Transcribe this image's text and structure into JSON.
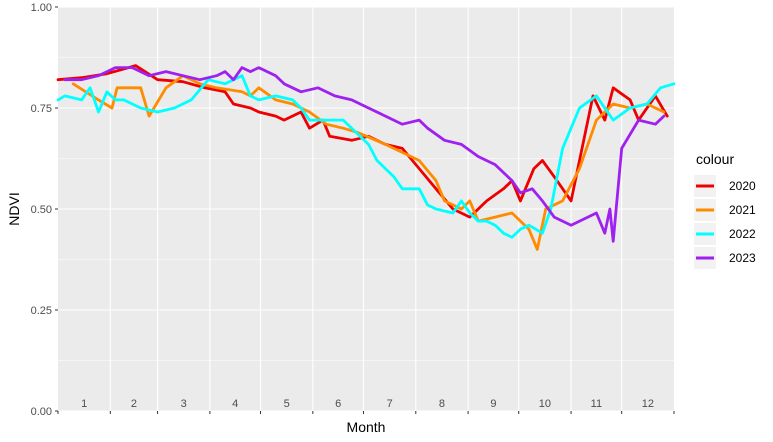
{
  "chart_data": {
    "type": "line",
    "xlabel": "Month",
    "ylabel": "NDVI",
    "ylim": [
      0,
      1
    ],
    "xlim": [
      1,
      366
    ],
    "y_ticks": [
      "0.00",
      "0.25",
      "0.50",
      "0.75",
      "1.00"
    ],
    "month_labels": [
      "1",
      "2",
      "3",
      "4",
      "5",
      "6",
      "7",
      "8",
      "9",
      "10",
      "11",
      "12"
    ],
    "grid": true,
    "legend_title": "colour",
    "legend_position": "right",
    "series": [
      {
        "name": "2020",
        "color": "#EE0000",
        "x": [
          1,
          15,
          30,
          47,
          60,
          75,
          88,
          100,
          105,
          115,
          120,
          130,
          135,
          145,
          150,
          158,
          162,
          175,
          185,
          195,
          205,
          215,
          225,
          235,
          245,
          255,
          265,
          270,
          275,
          283,
          288,
          295,
          305,
          310,
          318,
          325,
          330,
          340,
          345,
          355,
          362
        ],
        "y": [
          0.82,
          0.825,
          0.835,
          0.855,
          0.82,
          0.815,
          0.8,
          0.79,
          0.76,
          0.75,
          0.74,
          0.73,
          0.72,
          0.74,
          0.7,
          0.72,
          0.68,
          0.67,
          0.68,
          0.66,
          0.65,
          0.6,
          0.55,
          0.5,
          0.48,
          0.52,
          0.55,
          0.57,
          0.52,
          0.6,
          0.62,
          0.58,
          0.52,
          0.62,
          0.78,
          0.72,
          0.8,
          0.77,
          0.72,
          0.78,
          0.73
        ]
      },
      {
        "name": "2021",
        "color": "#FF8C00",
        "x": [
          10,
          25,
          33,
          36,
          50,
          55,
          65,
          75,
          85,
          95,
          110,
          115,
          120,
          130,
          140,
          150,
          160,
          170,
          178,
          184,
          195,
          205,
          215,
          225,
          230,
          240,
          245,
          250,
          260,
          270,
          280,
          285,
          290,
          300,
          310,
          320,
          330,
          340,
          350,
          360
        ],
        "y": [
          0.81,
          0.77,
          0.75,
          0.8,
          0.8,
          0.73,
          0.8,
          0.83,
          0.81,
          0.8,
          0.79,
          0.78,
          0.8,
          0.77,
          0.76,
          0.74,
          0.71,
          0.7,
          0.69,
          0.68,
          0.66,
          0.64,
          0.62,
          0.57,
          0.52,
          0.5,
          0.52,
          0.47,
          0.48,
          0.49,
          0.45,
          0.4,
          0.5,
          0.52,
          0.6,
          0.72,
          0.76,
          0.75,
          0.76,
          0.74
        ]
      },
      {
        "name": "2022",
        "color": "#00FFFF",
        "x": [
          1,
          5,
          15,
          20,
          25,
          30,
          35,
          40,
          50,
          60,
          70,
          80,
          90,
          100,
          110,
          115,
          120,
          130,
          140,
          145,
          150,
          160,
          170,
          180,
          185,
          190,
          195,
          200,
          205,
          215,
          220,
          225,
          235,
          240,
          245,
          250,
          255,
          260,
          265,
          270,
          275,
          280,
          288,
          293,
          300,
          310,
          320,
          330,
          340,
          350,
          358,
          366
        ],
        "y": [
          0.77,
          0.78,
          0.77,
          0.8,
          0.74,
          0.79,
          0.77,
          0.77,
          0.75,
          0.74,
          0.75,
          0.77,
          0.82,
          0.81,
          0.83,
          0.78,
          0.77,
          0.78,
          0.77,
          0.75,
          0.72,
          0.72,
          0.72,
          0.68,
          0.66,
          0.62,
          0.6,
          0.58,
          0.55,
          0.55,
          0.51,
          0.5,
          0.49,
          0.52,
          0.49,
          0.47,
          0.47,
          0.46,
          0.44,
          0.43,
          0.45,
          0.46,
          0.44,
          0.5,
          0.65,
          0.75,
          0.78,
          0.72,
          0.75,
          0.76,
          0.8,
          0.81
        ]
      },
      {
        "name": "2023",
        "color": "#A020F0",
        "x": [
          5,
          15,
          25,
          35,
          45,
          55,
          65,
          75,
          85,
          95,
          100,
          105,
          110,
          115,
          120,
          130,
          135,
          145,
          155,
          165,
          175,
          185,
          195,
          205,
          215,
          220,
          230,
          240,
          250,
          260,
          270,
          275,
          282,
          288,
          295,
          305,
          315,
          320,
          325,
          328,
          330,
          335,
          345,
          355,
          360
        ],
        "y": [
          0.82,
          0.82,
          0.83,
          0.85,
          0.85,
          0.83,
          0.84,
          0.83,
          0.82,
          0.83,
          0.84,
          0.82,
          0.85,
          0.84,
          0.85,
          0.83,
          0.81,
          0.79,
          0.8,
          0.78,
          0.77,
          0.75,
          0.73,
          0.71,
          0.72,
          0.7,
          0.67,
          0.66,
          0.63,
          0.61,
          0.57,
          0.54,
          0.55,
          0.52,
          0.48,
          0.46,
          0.48,
          0.49,
          0.44,
          0.5,
          0.42,
          0.65,
          0.72,
          0.71,
          0.73
        ]
      }
    ]
  }
}
